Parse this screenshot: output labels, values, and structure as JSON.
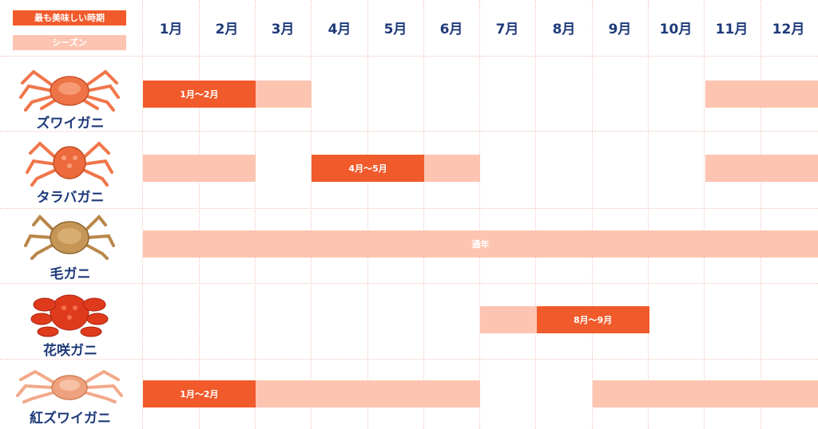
{
  "legend": {
    "peak": "最も美味しい時期",
    "season": "シーズン"
  },
  "months": [
    "1月",
    "2月",
    "3月",
    "4月",
    "5月",
    "6月",
    "7月",
    "8月",
    "9月",
    "10月",
    "11月",
    "12月"
  ],
  "colors": {
    "peak": "#f15a2b",
    "season": "#fcc4b1",
    "text": "#1f3a7a"
  },
  "crabs": [
    {
      "name": "ズワイガニ",
      "bars": [
        {
          "type": "peak",
          "start": 1,
          "end": 2,
          "label": "1月～2月"
        },
        {
          "type": "season",
          "start": 3,
          "end": 3,
          "label": ""
        },
        {
          "type": "season",
          "start": 11,
          "end": 12,
          "label": ""
        }
      ]
    },
    {
      "name": "タラバガニ",
      "bars": [
        {
          "type": "season",
          "start": 1,
          "end": 2,
          "label": ""
        },
        {
          "type": "peak",
          "start": 4,
          "end": 5,
          "label": "4月～5月"
        },
        {
          "type": "season",
          "start": 6,
          "end": 6,
          "label": ""
        },
        {
          "type": "season",
          "start": 11,
          "end": 12,
          "label": ""
        }
      ]
    },
    {
      "name": "毛ガニ",
      "bars": [
        {
          "type": "season",
          "start": 1,
          "end": 12,
          "label": "通年"
        }
      ]
    },
    {
      "name": "花咲ガニ",
      "bars": [
        {
          "type": "season",
          "start": 7,
          "end": 7,
          "label": ""
        },
        {
          "type": "peak",
          "start": 8,
          "end": 9,
          "label": "8月～9月"
        }
      ]
    },
    {
      "name": "紅ズワイガニ",
      "bars": [
        {
          "type": "peak",
          "start": 1,
          "end": 2,
          "label": "1月～2月"
        },
        {
          "type": "season",
          "start": 3,
          "end": 6,
          "label": ""
        },
        {
          "type": "season",
          "start": 9,
          "end": 12,
          "label": ""
        }
      ]
    }
  ]
}
